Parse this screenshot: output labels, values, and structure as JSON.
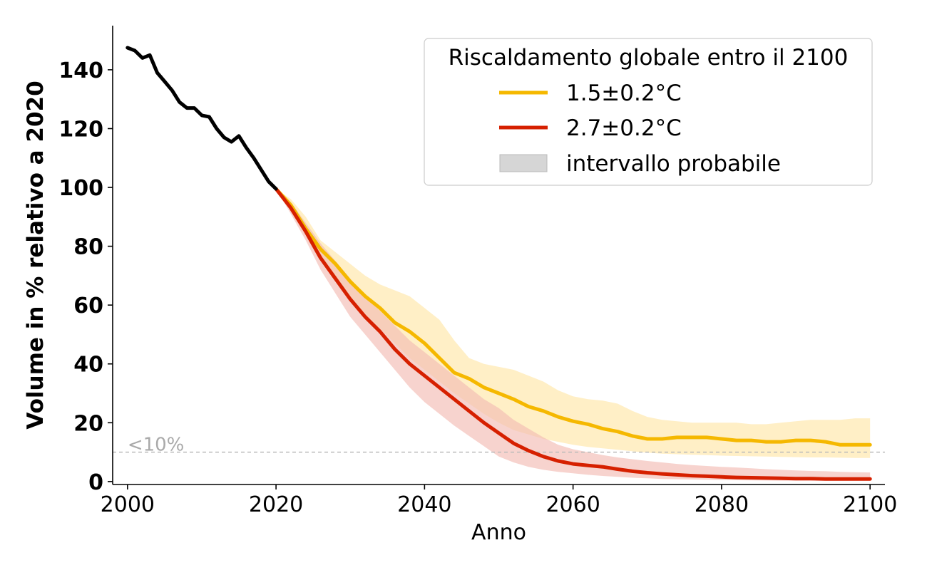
{
  "chart_data": {
    "type": "line",
    "xlabel": "Anno",
    "ylabel": "Volume in % relativo a 2020",
    "xlim": [
      1998,
      2102
    ],
    "ylim": [
      -1,
      155
    ],
    "xticks": [
      2000,
      2020,
      2040,
      2060,
      2080,
      2100
    ],
    "yticks": [
      0,
      20,
      40,
      60,
      80,
      100,
      120,
      140
    ],
    "grid": false,
    "legend": {
      "title": "Riscaldamento globale entro il 2100",
      "placement": "top-right",
      "entries": [
        "1.5±0.2°C",
        "2.7±0.2°C",
        "intervallo probabile"
      ]
    },
    "annotations": [
      {
        "text": "<10%",
        "x": 2000,
        "y": 10
      }
    ],
    "threshold_line": {
      "y": 10,
      "style": "dashed",
      "color": "#bbbbbb"
    },
    "colors": {
      "historical": "#000000",
      "low": "#f5b800",
      "high": "#d62000",
      "band_low": "#ffe9b3",
      "band_high": "#f2bcb4",
      "legend_band": "#d6d6d6",
      "annotation": "#aaaaaa"
    },
    "historical": {
      "x": [
        2000,
        2001,
        2002,
        2003,
        2004,
        2005,
        2006,
        2007,
        2008,
        2009,
        2010,
        2011,
        2012,
        2013,
        2014,
        2015,
        2016,
        2017,
        2018,
        2019,
        2020
      ],
      "y": [
        147.5,
        146.5,
        144,
        145,
        139,
        136,
        133,
        129,
        127,
        127,
        124.5,
        124,
        120,
        117,
        115.5,
        117.5,
        113.5,
        110,
        106,
        102,
        99.5
      ]
    },
    "series": [
      {
        "name": "1.5±0.2°C",
        "x": [
          2020,
          2022,
          2024,
          2026,
          2028,
          2030,
          2032,
          2034,
          2036,
          2038,
          2040,
          2042,
          2044,
          2046,
          2048,
          2050,
          2052,
          2054,
          2056,
          2058,
          2060,
          2062,
          2064,
          2066,
          2068,
          2070,
          2072,
          2074,
          2076,
          2078,
          2080,
          2082,
          2084,
          2086,
          2088,
          2090,
          2092,
          2094,
          2096,
          2098,
          2100
        ],
        "y": [
          99.5,
          94,
          86,
          79,
          74,
          68,
          63,
          59,
          54,
          51,
          47,
          42,
          37,
          35,
          32,
          30,
          28,
          25.5,
          24,
          22,
          20.5,
          19.5,
          18,
          17,
          15.5,
          14.5,
          14.5,
          15,
          15,
          15,
          14.5,
          14,
          14,
          13.5,
          13.5,
          14,
          14,
          13.5,
          12.5,
          12.5,
          12.5
        ],
        "lower": [
          99.5,
          92,
          84,
          76,
          69,
          63,
          57,
          52,
          47,
          42,
          38,
          34,
          30,
          26.5,
          23,
          20,
          17.5,
          16,
          14.5,
          13.5,
          12.5,
          11.8,
          11.3,
          10.8,
          10.3,
          9.8,
          9.5,
          9.3,
          9.1,
          9,
          8.8,
          8.7,
          8.6,
          8.5,
          8.4,
          8.3,
          8.2,
          8.2,
          8.1,
          8,
          8
        ],
        "upper": [
          99.5,
          96,
          90,
          82,
          78,
          74,
          70,
          67,
          65,
          63,
          59,
          55,
          48,
          42,
          40,
          39,
          38,
          36,
          34,
          31,
          29,
          28,
          27.5,
          26.5,
          24,
          22,
          21,
          20.5,
          20,
          20,
          20,
          20,
          19.5,
          19.5,
          20,
          20.5,
          21,
          21,
          21,
          21.5,
          21.5
        ]
      },
      {
        "name": "2.7±0.2°C",
        "x": [
          2020,
          2022,
          2024,
          2026,
          2028,
          2030,
          2032,
          2034,
          2036,
          2038,
          2040,
          2042,
          2044,
          2046,
          2048,
          2050,
          2052,
          2054,
          2056,
          2058,
          2060,
          2062,
          2064,
          2066,
          2068,
          2070,
          2072,
          2074,
          2076,
          2078,
          2080,
          2082,
          2084,
          2086,
          2088,
          2090,
          2092,
          2094,
          2096,
          2098,
          2100
        ],
        "y": [
          99.5,
          93,
          85,
          76,
          69,
          62,
          56,
          51,
          45,
          40,
          36,
          32,
          28,
          24,
          20,
          16.5,
          13,
          10.5,
          8.5,
          7,
          6,
          5.5,
          5,
          4.2,
          3.5,
          3,
          2.6,
          2.3,
          2,
          1.8,
          1.6,
          1.4,
          1.3,
          1.2,
          1.1,
          1,
          1,
          0.9,
          0.9,
          0.9,
          0.9
        ],
        "lower": [
          99.5,
          91,
          82,
          72,
          64,
          56,
          50,
          44,
          38,
          32,
          27,
          23,
          19,
          15.5,
          12,
          8.5,
          6.5,
          5,
          4,
          3.3,
          2.8,
          2.3,
          1.9,
          1.6,
          1.3,
          1.1,
          0.9,
          0.8,
          0.7,
          0.6,
          0.5,
          0.45,
          0.4,
          0.35,
          0.3,
          0.3,
          0.3,
          0.3,
          0.3,
          0.3,
          0.3
        ],
        "upper": [
          99.5,
          95,
          88,
          81,
          75,
          69,
          63,
          58,
          53,
          48,
          44,
          40,
          36,
          32,
          28,
          25,
          21,
          18,
          15,
          12.5,
          11,
          10,
          9,
          8.2,
          7.6,
          7,
          6.5,
          6,
          5.6,
          5.3,
          5,
          4.8,
          4.5,
          4.2,
          4,
          3.8,
          3.6,
          3.5,
          3.3,
          3.2,
          3.1
        ]
      }
    ]
  }
}
